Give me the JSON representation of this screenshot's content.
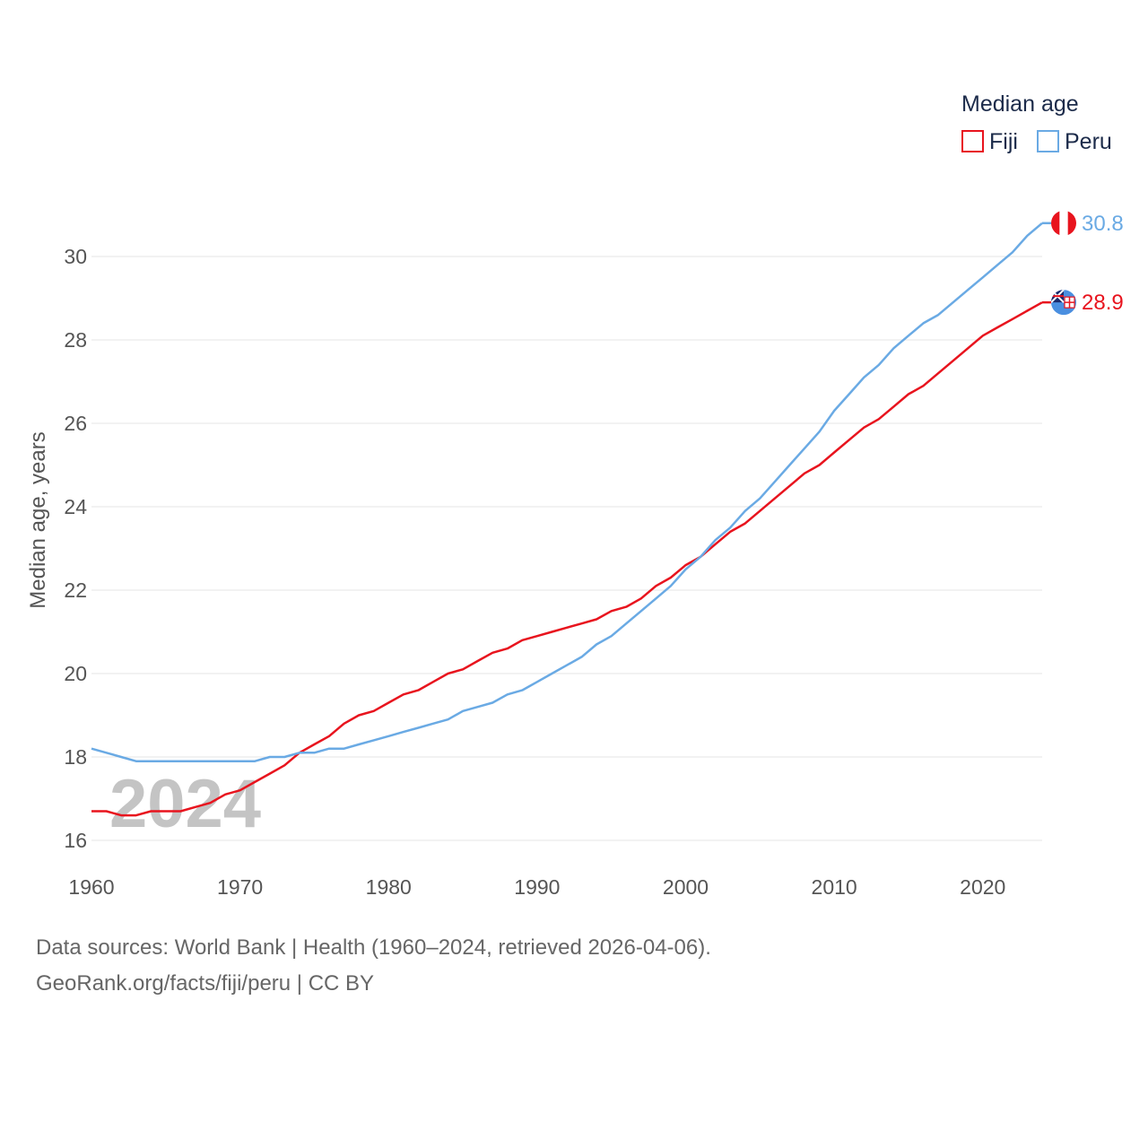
{
  "chart_data": {
    "type": "line",
    "title": "",
    "xlabel": "",
    "ylabel": "Median age, years",
    "xlim": [
      1960,
      2024
    ],
    "ylim": [
      16,
      31
    ],
    "yticks": [
      16,
      18,
      20,
      22,
      24,
      26,
      28,
      30
    ],
    "xticks": [
      1960,
      1970,
      1980,
      1990,
      2000,
      2010,
      2020
    ],
    "grid": true,
    "legend": {
      "title": "Median age",
      "position": "top-right"
    },
    "watermark": "2024",
    "x": [
      1960,
      1961,
      1962,
      1963,
      1964,
      1965,
      1966,
      1967,
      1968,
      1969,
      1970,
      1971,
      1972,
      1973,
      1974,
      1975,
      1976,
      1977,
      1978,
      1979,
      1980,
      1981,
      1982,
      1983,
      1984,
      1985,
      1986,
      1987,
      1988,
      1989,
      1990,
      1991,
      1992,
      1993,
      1994,
      1995,
      1996,
      1997,
      1998,
      1999,
      2000,
      2001,
      2002,
      2003,
      2004,
      2005,
      2006,
      2007,
      2008,
      2009,
      2010,
      2011,
      2012,
      2013,
      2014,
      2015,
      2016,
      2017,
      2018,
      2019,
      2020,
      2021,
      2022,
      2023,
      2024
    ],
    "series": [
      {
        "name": "Fiji",
        "color": "#e8141e",
        "end_label": "28.9",
        "flag": "fiji-flag",
        "values": [
          16.7,
          16.7,
          16.6,
          16.6,
          16.7,
          16.7,
          16.7,
          16.8,
          16.9,
          17.1,
          17.2,
          17.4,
          17.6,
          17.8,
          18.1,
          18.3,
          18.5,
          18.8,
          19.0,
          19.1,
          19.3,
          19.5,
          19.6,
          19.8,
          20.0,
          20.1,
          20.3,
          20.5,
          20.6,
          20.8,
          20.9,
          21.0,
          21.1,
          21.2,
          21.3,
          21.5,
          21.6,
          21.8,
          22.1,
          22.3,
          22.6,
          22.8,
          23.1,
          23.4,
          23.6,
          23.9,
          24.2,
          24.5,
          24.8,
          25.0,
          25.3,
          25.6,
          25.9,
          26.1,
          26.4,
          26.7,
          26.9,
          27.2,
          27.5,
          27.8,
          28.1,
          28.3,
          28.5,
          28.7,
          28.9
        ]
      },
      {
        "name": "Peru",
        "color": "#6aaae4",
        "end_label": "30.8",
        "flag": "peru-flag",
        "values": [
          18.2,
          18.1,
          18.0,
          17.9,
          17.9,
          17.9,
          17.9,
          17.9,
          17.9,
          17.9,
          17.9,
          17.9,
          18.0,
          18.0,
          18.1,
          18.1,
          18.2,
          18.2,
          18.3,
          18.4,
          18.5,
          18.6,
          18.7,
          18.8,
          18.9,
          19.1,
          19.2,
          19.3,
          19.5,
          19.6,
          19.8,
          20.0,
          20.2,
          20.4,
          20.7,
          20.9,
          21.2,
          21.5,
          21.8,
          22.1,
          22.5,
          22.8,
          23.2,
          23.5,
          23.9,
          24.2,
          24.6,
          25.0,
          25.4,
          25.8,
          26.3,
          26.7,
          27.1,
          27.4,
          27.8,
          28.1,
          28.4,
          28.6,
          28.9,
          29.2,
          29.5,
          29.8,
          30.1,
          30.5,
          30.8
        ]
      }
    ]
  },
  "footer": {
    "line1": "Data sources: World Bank | Health (1960–2024, retrieved 2026-04-06).",
    "line2": "GeoRank.org/facts/fiji/peru | CC BY"
  }
}
